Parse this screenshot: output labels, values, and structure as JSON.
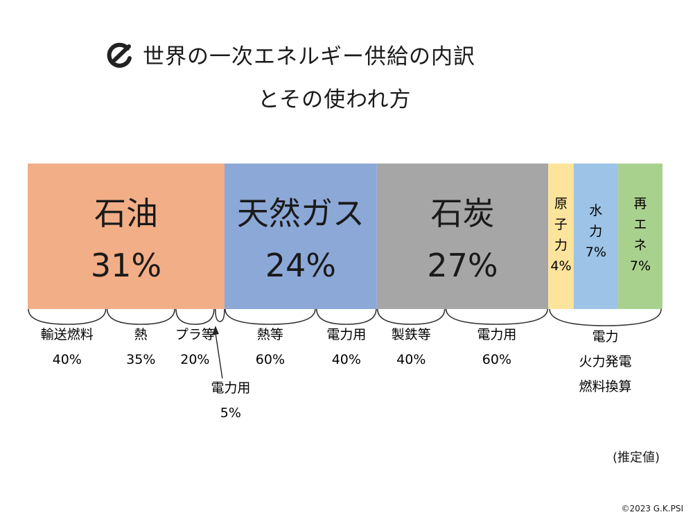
{
  "title": {
    "line1": "世界の一次エネルギー供給の内訳",
    "line2": "とその使われ方"
  },
  "logo_icon": "gkpsi-logo-icon",
  "note": "(推定値)",
  "credit": "©2023 G.K.PSI",
  "chart_data": {
    "type": "bar",
    "orientation": "horizontal-stacked",
    "segments": [
      {
        "label": "石油",
        "value": 31,
        "value_label": "31%",
        "color": "#F2AE86",
        "uses": [
          {
            "label": "輸送燃料",
            "value_label": "40%",
            "share": 40
          },
          {
            "label": "熱",
            "value_label": "35%",
            "share": 35
          },
          {
            "label": "プラ等",
            "value_label": "20%",
            "share": 20
          },
          {
            "label": "電力用",
            "value_label": "5%",
            "share": 5,
            "callout": true
          }
        ]
      },
      {
        "label": "天然ガス",
        "value": 24,
        "value_label": "24%",
        "color": "#8CA8D7",
        "uses": [
          {
            "label": "熱等",
            "value_label": "60%",
            "share": 60
          },
          {
            "label": "電力用",
            "value_label": "40%",
            "share": 40
          }
        ]
      },
      {
        "label": "石炭",
        "value": 27,
        "value_label": "27%",
        "color": "#A6A6A6",
        "uses": [
          {
            "label": "製鉄等",
            "value_label": "40%",
            "share": 40
          },
          {
            "label": "電力用",
            "value_label": "60%",
            "share": 60
          }
        ]
      },
      {
        "label": "原子力",
        "value": 4,
        "value_label": "4%",
        "color": "#FDE49D",
        "vertical": true
      },
      {
        "label": "水力",
        "value": 7,
        "value_label": "7%",
        "color": "#9DC3E6",
        "vertical": true
      },
      {
        "label": "再エネ",
        "value": 7,
        "value_label": "7%",
        "color": "#A9D18E",
        "vertical": true
      }
    ],
    "group_brace": {
      "from": "原子力",
      "to": "再エネ",
      "lines": [
        "電力",
        "火力発電",
        "燃料換算"
      ]
    }
  }
}
